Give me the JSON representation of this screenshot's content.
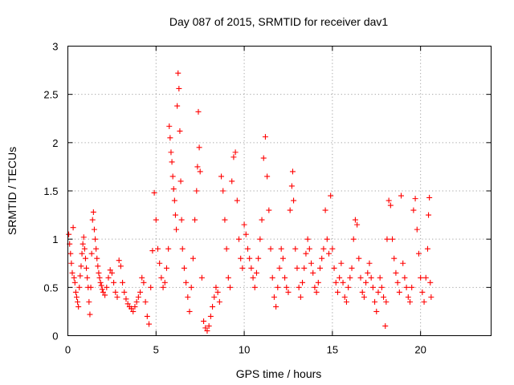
{
  "chart_data": {
    "type": "scatter",
    "title": "Day 087 of 2015, SRMTID for receiver dav1",
    "xlabel": "GPS time / hours",
    "ylabel": "SRMTID / TECUs",
    "xlim": [
      0,
      24
    ],
    "ylim": [
      0,
      3
    ],
    "xticks": [
      0,
      5,
      10,
      15,
      20
    ],
    "yticks": [
      0,
      0.5,
      1,
      1.5,
      2,
      2.5,
      3
    ],
    "xtick_labels": [
      "0",
      "5",
      "10",
      "15",
      "20"
    ],
    "ytick_labels": [
      "0",
      "0.5",
      "1",
      "1.5",
      "2",
      "2.5",
      "3"
    ],
    "grid": true,
    "marker": "+",
    "color": "#ff0000",
    "series": [
      {
        "name": "SRMTID",
        "points": [
          [
            0.05,
            1.05
          ],
          [
            0.1,
            0.95
          ],
          [
            0.15,
            0.85
          ],
          [
            0.2,
            0.75
          ],
          [
            0.25,
            0.65
          ],
          [
            0.3,
            1.12
          ],
          [
            0.35,
            0.6
          ],
          [
            0.4,
            0.55
          ],
          [
            0.45,
            0.45
          ],
          [
            0.5,
            0.4
          ],
          [
            0.55,
            0.35
          ],
          [
            0.6,
            0.3
          ],
          [
            0.65,
            0.5
          ],
          [
            0.7,
            0.62
          ],
          [
            0.75,
            0.72
          ],
          [
            0.8,
            0.85
          ],
          [
            0.85,
            0.95
          ],
          [
            0.9,
            1.02
          ],
          [
            0.95,
            0.9
          ],
          [
            1.0,
            0.8
          ],
          [
            1.05,
            0.7
          ],
          [
            1.1,
            0.6
          ],
          [
            1.15,
            0.5
          ],
          [
            1.2,
            0.35
          ],
          [
            1.25,
            0.22
          ],
          [
            1.3,
            0.5
          ],
          [
            1.35,
            0.85
          ],
          [
            1.4,
            1.2
          ],
          [
            1.45,
            1.28
          ],
          [
            1.5,
            1.1
          ],
          [
            1.55,
            1.0
          ],
          [
            1.6,
            0.9
          ],
          [
            1.65,
            0.8
          ],
          [
            1.7,
            0.72
          ],
          [
            1.75,
            0.65
          ],
          [
            1.8,
            0.6
          ],
          [
            1.85,
            0.55
          ],
          [
            1.9,
            0.52
          ],
          [
            1.95,
            0.48
          ],
          [
            2.0,
            0.45
          ],
          [
            2.1,
            0.42
          ],
          [
            2.2,
            0.5
          ],
          [
            2.3,
            0.6
          ],
          [
            2.4,
            0.68
          ],
          [
            2.5,
            0.65
          ],
          [
            2.6,
            0.55
          ],
          [
            2.7,
            0.45
          ],
          [
            2.8,
            0.4
          ],
          [
            2.9,
            0.78
          ],
          [
            3.0,
            0.72
          ],
          [
            3.1,
            0.55
          ],
          [
            3.2,
            0.45
          ],
          [
            3.3,
            0.38
          ],
          [
            3.4,
            0.33
          ],
          [
            3.5,
            0.3
          ],
          [
            3.6,
            0.28
          ],
          [
            3.7,
            0.25
          ],
          [
            3.8,
            0.3
          ],
          [
            3.9,
            0.35
          ],
          [
            4.0,
            0.4
          ],
          [
            4.1,
            0.45
          ],
          [
            4.2,
            0.6
          ],
          [
            4.3,
            0.55
          ],
          [
            4.4,
            0.35
          ],
          [
            4.5,
            0.2
          ],
          [
            4.6,
            0.12
          ],
          [
            4.7,
            0.5
          ],
          [
            4.8,
            0.88
          ],
          [
            4.9,
            1.48
          ],
          [
            5.0,
            1.2
          ],
          [
            5.1,
            0.9
          ],
          [
            5.2,
            0.75
          ],
          [
            5.3,
            0.6
          ],
          [
            5.4,
            0.5
          ],
          [
            5.5,
            0.55
          ],
          [
            5.6,
            0.7
          ],
          [
            5.7,
            0.9
          ],
          [
            5.75,
            2.17
          ],
          [
            5.8,
            2.05
          ],
          [
            5.85,
            1.9
          ],
          [
            5.9,
            1.8
          ],
          [
            5.95,
            1.65
          ],
          [
            6.0,
            1.52
          ],
          [
            6.05,
            1.4
          ],
          [
            6.1,
            1.25
          ],
          [
            6.15,
            1.1
          ],
          [
            6.2,
            2.38
          ],
          [
            6.25,
            2.72
          ],
          [
            6.3,
            2.56
          ],
          [
            6.35,
            2.12
          ],
          [
            6.4,
            1.6
          ],
          [
            6.45,
            1.2
          ],
          [
            6.5,
            0.9
          ],
          [
            6.6,
            0.7
          ],
          [
            6.7,
            0.55
          ],
          [
            6.8,
            0.4
          ],
          [
            6.9,
            0.25
          ],
          [
            7.0,
            0.5
          ],
          [
            7.1,
            0.8
          ],
          [
            7.2,
            1.2
          ],
          [
            7.3,
            1.5
          ],
          [
            7.35,
            1.75
          ],
          [
            7.4,
            2.32
          ],
          [
            7.45,
            1.95
          ],
          [
            7.5,
            1.7
          ],
          [
            7.6,
            0.6
          ],
          [
            7.7,
            0.15
          ],
          [
            7.8,
            0.08
          ],
          [
            7.9,
            0.05
          ],
          [
            8.0,
            0.1
          ],
          [
            8.1,
            0.2
          ],
          [
            8.2,
            0.3
          ],
          [
            8.3,
            0.4
          ],
          [
            8.4,
            0.5
          ],
          [
            8.5,
            0.45
          ],
          [
            8.6,
            0.35
          ],
          [
            8.7,
            1.65
          ],
          [
            8.8,
            1.5
          ],
          [
            8.9,
            1.2
          ],
          [
            9.0,
            0.9
          ],
          [
            9.1,
            0.6
          ],
          [
            9.2,
            0.5
          ],
          [
            9.3,
            1.6
          ],
          [
            9.4,
            1.85
          ],
          [
            9.5,
            1.9
          ],
          [
            9.6,
            1.4
          ],
          [
            9.7,
            1.0
          ],
          [
            9.8,
            0.8
          ],
          [
            9.9,
            0.7
          ],
          [
            10.0,
            1.15
          ],
          [
            10.1,
            1.05
          ],
          [
            10.2,
            0.9
          ],
          [
            10.3,
            0.8
          ],
          [
            10.4,
            0.7
          ],
          [
            10.5,
            0.6
          ],
          [
            10.6,
            0.5
          ],
          [
            10.7,
            0.65
          ],
          [
            10.8,
            0.8
          ],
          [
            10.9,
            1.0
          ],
          [
            11.0,
            1.2
          ],
          [
            11.1,
            1.84
          ],
          [
            11.2,
            2.06
          ],
          [
            11.3,
            1.65
          ],
          [
            11.4,
            1.3
          ],
          [
            11.5,
            0.9
          ],
          [
            11.6,
            0.6
          ],
          [
            11.7,
            0.4
          ],
          [
            11.8,
            0.3
          ],
          [
            11.9,
            0.5
          ],
          [
            12.0,
            0.7
          ],
          [
            12.1,
            0.9
          ],
          [
            12.2,
            0.8
          ],
          [
            12.3,
            0.6
          ],
          [
            12.4,
            0.5
          ],
          [
            12.5,
            0.45
          ],
          [
            12.6,
            1.3
          ],
          [
            12.7,
            1.55
          ],
          [
            12.75,
            1.7
          ],
          [
            12.8,
            1.4
          ],
          [
            12.9,
            0.9
          ],
          [
            13.0,
            0.7
          ],
          [
            13.1,
            0.5
          ],
          [
            13.2,
            0.4
          ],
          [
            13.3,
            0.55
          ],
          [
            13.4,
            0.7
          ],
          [
            13.5,
            0.85
          ],
          [
            13.6,
            1.0
          ],
          [
            13.7,
            0.9
          ],
          [
            13.8,
            0.75
          ],
          [
            13.9,
            0.65
          ],
          [
            14.0,
            0.5
          ],
          [
            14.1,
            0.45
          ],
          [
            14.2,
            0.55
          ],
          [
            14.3,
            0.7
          ],
          [
            14.4,
            0.8
          ],
          [
            14.5,
            0.9
          ],
          [
            14.6,
            1.3
          ],
          [
            14.7,
            1.0
          ],
          [
            14.8,
            0.85
          ],
          [
            14.9,
            1.45
          ],
          [
            15.0,
            0.9
          ],
          [
            15.1,
            0.7
          ],
          [
            15.2,
            0.55
          ],
          [
            15.3,
            0.45
          ],
          [
            15.4,
            0.6
          ],
          [
            15.5,
            0.75
          ],
          [
            15.6,
            0.55
          ],
          [
            15.7,
            0.4
          ],
          [
            15.8,
            0.35
          ],
          [
            15.9,
            0.5
          ],
          [
            16.0,
            0.6
          ],
          [
            16.1,
            0.7
          ],
          [
            16.2,
            1.0
          ],
          [
            16.3,
            1.2
          ],
          [
            16.4,
            1.15
          ],
          [
            16.5,
            0.8
          ],
          [
            16.6,
            0.6
          ],
          [
            16.7,
            0.45
          ],
          [
            16.8,
            0.4
          ],
          [
            16.9,
            0.55
          ],
          [
            17.0,
            0.65
          ],
          [
            17.1,
            0.75
          ],
          [
            17.2,
            0.6
          ],
          [
            17.3,
            0.5
          ],
          [
            17.4,
            0.35
          ],
          [
            17.5,
            0.25
          ],
          [
            17.6,
            0.45
          ],
          [
            17.7,
            0.6
          ],
          [
            17.8,
            0.5
          ],
          [
            17.9,
            0.4
          ],
          [
            18.0,
            0.1
          ],
          [
            18.05,
            0.35
          ],
          [
            18.1,
            1.0
          ],
          [
            18.2,
            1.4
          ],
          [
            18.3,
            1.35
          ],
          [
            18.4,
            1.0
          ],
          [
            18.5,
            0.8
          ],
          [
            18.6,
            0.65
          ],
          [
            18.7,
            0.55
          ],
          [
            18.8,
            0.45
          ],
          [
            18.9,
            1.45
          ],
          [
            19.0,
            0.75
          ],
          [
            19.1,
            0.6
          ],
          [
            19.2,
            0.5
          ],
          [
            19.3,
            0.4
          ],
          [
            19.4,
            0.35
          ],
          [
            19.5,
            0.5
          ],
          [
            19.6,
            1.3
          ],
          [
            19.7,
            1.42
          ],
          [
            19.8,
            1.1
          ],
          [
            19.9,
            0.85
          ],
          [
            20.0,
            0.6
          ],
          [
            20.1,
            0.45
          ],
          [
            20.2,
            0.35
          ],
          [
            20.3,
            0.6
          ],
          [
            20.4,
            0.9
          ],
          [
            20.45,
            1.25
          ],
          [
            20.5,
            1.43
          ],
          [
            20.55,
            0.55
          ],
          [
            20.6,
            0.4
          ]
        ]
      }
    ]
  }
}
